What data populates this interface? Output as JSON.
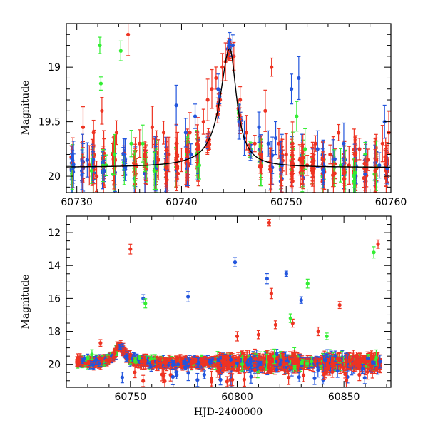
{
  "chart_data": [
    {
      "type": "scatter",
      "title": "",
      "xlabel": "",
      "ylabel": "Magnitude",
      "xlim": [
        60729,
        60760
      ],
      "ylim": [
        20.15,
        18.6
      ],
      "y_inverted": true,
      "xticks": [
        60730,
        60740,
        60750,
        60760
      ],
      "yticks": [
        19,
        19.5,
        20
      ],
      "ytick_labels": [
        "19",
        "19.5",
        "20"
      ],
      "model_curve": {
        "peak_x": 60744.6,
        "peak_y": 18.83,
        "base_y": 19.92,
        "description_color": "#000000"
      },
      "series": [
        {
          "color": "#ee3322",
          "points": [
            [
              60730.6,
              19.55
            ],
            [
              60731.2,
              19.9
            ],
            [
              60731.6,
              19.6
            ],
            [
              60731.9,
              20.0
            ],
            [
              60732.4,
              19.4
            ],
            [
              60733.4,
              19.8
            ],
            [
              60733.8,
              19.6
            ],
            [
              60734.9,
              18.7
            ],
            [
              60735.5,
              19.9
            ],
            [
              60736.0,
              19.7
            ],
            [
              60736.5,
              19.8
            ],
            [
              60737.2,
              19.55
            ],
            [
              60737.8,
              19.85
            ],
            [
              60738.3,
              19.6
            ],
            [
              60738.8,
              19.8
            ],
            [
              60739.5,
              19.7
            ],
            [
              60740.0,
              19.85
            ],
            [
              60740.8,
              19.6
            ],
            [
              60741.5,
              19.7
            ],
            [
              60742.1,
              19.5
            ],
            [
              60742.5,
              19.3
            ],
            [
              60742.9,
              19.2
            ],
            [
              60743.3,
              19.1
            ],
            [
              60743.9,
              19.0
            ],
            [
              60744.2,
              18.95
            ],
            [
              60745.0,
              18.9
            ],
            [
              60745.6,
              19.3
            ],
            [
              60746.2,
              19.6
            ],
            [
              60747.0,
              19.7
            ],
            [
              60748.0,
              19.4
            ],
            [
              60748.6,
              19.0
            ],
            [
              60749.3,
              19.7
            ],
            [
              60750.0,
              19.8
            ],
            [
              60750.6,
              19.7
            ],
            [
              60751.3,
              19.85
            ],
            [
              60752.0,
              19.9
            ],
            [
              60752.8,
              19.7
            ],
            [
              60753.5,
              19.85
            ],
            [
              60754.2,
              19.8
            ],
            [
              60755.0,
              19.6
            ],
            [
              60756.0,
              19.9
            ],
            [
              60757.0,
              19.75
            ],
            [
              60757.8,
              19.85
            ],
            [
              60758.5,
              19.95
            ],
            [
              60759.2,
              19.7
            ],
            [
              60759.8,
              19.6
            ]
          ]
        },
        {
          "color": "#2255dd",
          "points": [
            [
              60731.0,
              19.85
            ],
            [
              60734.5,
              19.8
            ],
            [
              60739.5,
              19.35
            ],
            [
              60740.4,
              19.6
            ],
            [
              60740.9,
              19.8
            ],
            [
              60741.3,
              19.45
            ],
            [
              60743.5,
              19.2
            ],
            [
              60744.6,
              18.75
            ],
            [
              60744.9,
              18.8
            ],
            [
              60745.5,
              19.5
            ],
            [
              60746.0,
              19.65
            ],
            [
              60747.4,
              19.55
            ],
            [
              60748.3,
              19.7
            ],
            [
              60749.0,
              19.65
            ],
            [
              60749.6,
              19.9
            ],
            [
              60750.5,
              19.2
            ],
            [
              60751.2,
              19.1
            ],
            [
              60753.0,
              19.75
            ],
            [
              60755.5,
              19.7
            ],
            [
              60758.9,
              19.9
            ],
            [
              60759.4,
              19.5
            ]
          ]
        },
        {
          "color": "#33ee33",
          "points": [
            [
              60731.4,
              19.95
            ],
            [
              60732.2,
              18.8
            ],
            [
              60732.3,
              19.15
            ],
            [
              60732.8,
              19.9
            ],
            [
              60733.6,
              19.8
            ],
            [
              60734.2,
              18.85
            ],
            [
              60735.2,
              19.7
            ],
            [
              60736.3,
              19.7
            ],
            [
              60737.4,
              19.95
            ],
            [
              60741.7,
              19.9
            ],
            [
              60751.0,
              19.45
            ],
            [
              60751.8,
              19.75
            ],
            [
              60755.2,
              19.9
            ]
          ]
        }
      ]
    },
    {
      "type": "scatter",
      "title": "",
      "xlabel": "HJD-2400000",
      "ylabel": "Magnitude",
      "xlim": [
        60720,
        60872
      ],
      "ylim": [
        21.4,
        11.0
      ],
      "y_inverted": true,
      "xticks": [
        60750,
        60800,
        60850
      ],
      "yticks": [
        12,
        14,
        16,
        18,
        20
      ],
      "baseline": {
        "x_start": 60725,
        "x_end": 60867,
        "y": 19.9,
        "flare_peak_x": 60745,
        "flare_peak_y": 18.85
      },
      "series": [
        {
          "color": "#ee3322",
          "outliers": [
            [
              60736,
              18.7
            ],
            [
              60750,
              13.0
            ],
            [
              60800,
              18.3
            ],
            [
              60810,
              18.2
            ],
            [
              60815,
              11.4
            ],
            [
              60816,
              15.7
            ],
            [
              60818,
              17.6
            ],
            [
              60826,
              17.5
            ],
            [
              60838,
              18.0
            ],
            [
              60848,
              16.4
            ],
            [
              60866,
              12.7
            ]
          ]
        },
        {
          "color": "#2255dd",
          "outliers": [
            [
              60756,
              16.0
            ],
            [
              60777,
              15.9
            ],
            [
              60799,
              13.8
            ],
            [
              60814,
              14.8
            ],
            [
              60823,
              14.5
            ],
            [
              60830,
              16.1
            ],
            [
              60846,
              19.5
            ]
          ]
        },
        {
          "color": "#33ee33",
          "outliers": [
            [
              60732,
              19.4
            ],
            [
              60757,
              16.3
            ],
            [
              60825,
              17.2
            ],
            [
              60833,
              15.1
            ],
            [
              60842,
              18.3
            ],
            [
              60864,
              13.2
            ]
          ]
        }
      ]
    }
  ]
}
